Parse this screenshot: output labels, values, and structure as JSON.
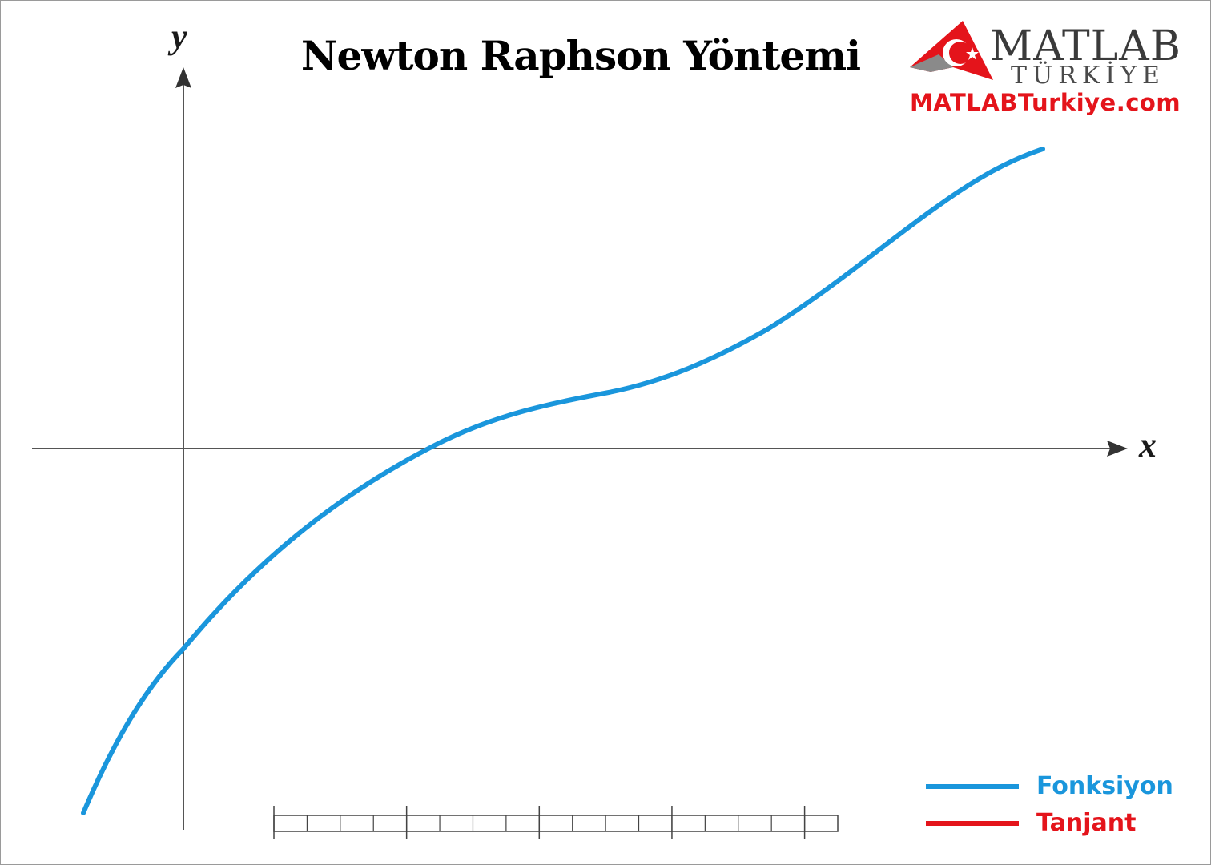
{
  "title": "Newton Raphson Yöntemi",
  "axes": {
    "x_label": "x",
    "y_label": "y"
  },
  "logo": {
    "main_text": "MATLAB",
    "sub_text": "TÜRKİYE",
    "url_text": "MATLABTurkiye.com",
    "brand_red": "#e4141b",
    "brand_gray": "#3a3a3a"
  },
  "legend": [
    {
      "label": "Fonksiyon",
      "color": "#1a96dc"
    },
    {
      "label": "Tanjant",
      "color": "#e4141b"
    }
  ],
  "colors": {
    "function_curve": "#1a96dc",
    "axis": "#555555"
  },
  "progress_bar": {
    "segments": 17,
    "filled": 0,
    "major_tick_every": 4
  }
}
